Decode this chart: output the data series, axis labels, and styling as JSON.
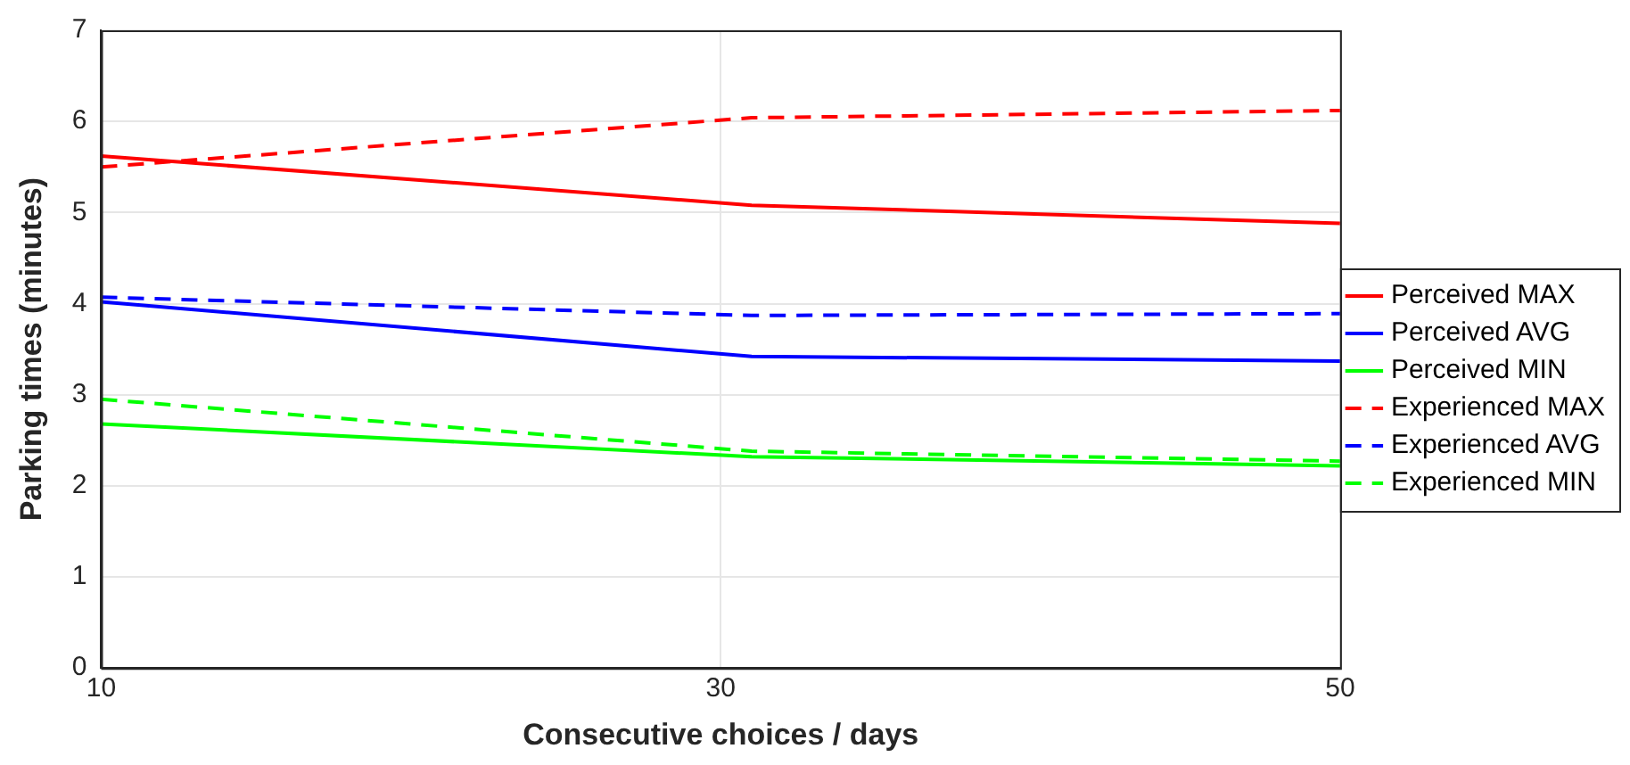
{
  "chart_data": {
    "type": "line",
    "xlabel": "Consecutive choices / days",
    "ylabel": "Parking times (minutes)",
    "x": [
      10,
      31,
      50
    ],
    "series": [
      {
        "name": "Perceived MAX",
        "color": "#ff0000",
        "values": [
          5.62,
          5.08,
          4.88
        ],
        "line_style": "solid"
      },
      {
        "name": "Perceived AVG",
        "color": "#0000ff",
        "values": [
          4.02,
          3.42,
          3.37
        ],
        "line_style": "solid"
      },
      {
        "name": "Perceived MIN",
        "color": "#00ff00",
        "values": [
          2.68,
          2.32,
          2.22
        ],
        "line_style": "solid"
      },
      {
        "name": "Experienced MAX",
        "color": "#ff0000",
        "values": [
          5.5,
          6.04,
          6.12
        ],
        "line_style": "dashed"
      },
      {
        "name": "Experienced AVG",
        "color": "#0000ff",
        "values": [
          4.07,
          3.87,
          3.89
        ],
        "line_style": "dashed"
      },
      {
        "name": "Experienced MIN",
        "color": "#00ff00",
        "values": [
          2.95,
          2.38,
          2.27
        ],
        "line_style": "dashed"
      }
    ],
    "xlim": [
      10,
      50
    ],
    "xticks": [
      10,
      30,
      50
    ],
    "ylim": [
      0,
      7
    ],
    "yticks": [
      0,
      1,
      2,
      3,
      4,
      5,
      6,
      7
    ],
    "grid": true,
    "legend": "right",
    "marker": "none"
  }
}
